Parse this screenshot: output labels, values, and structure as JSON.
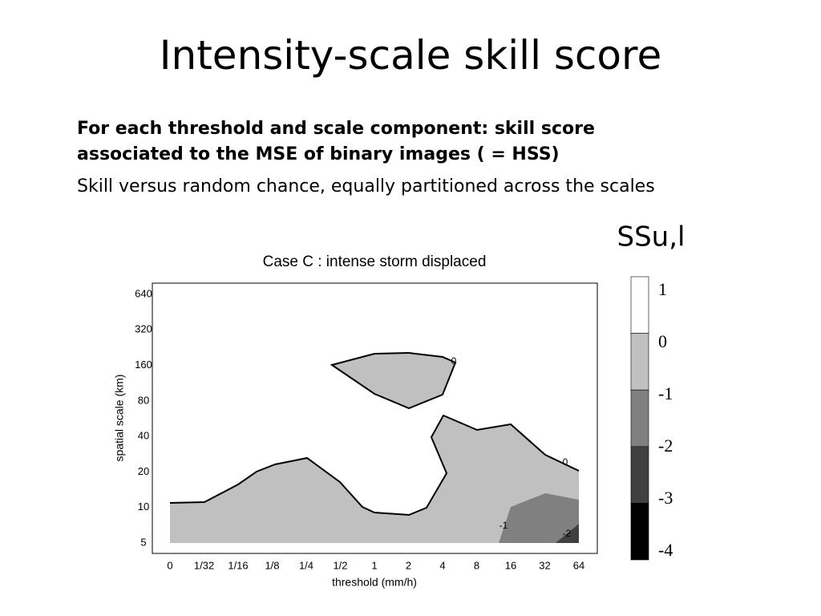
{
  "title": "Intensity-scale skill score",
  "paragraphs": [
    "For each threshold and scale component: skill score associated to the MSE of binary images ( = HSS)",
    "Skill versus random chance, equally partitioned across the scales"
  ],
  "chart": {
    "title": "Case C : intense storm displaced",
    "x_label": "threshold (mm/h)",
    "y_label": "spatial scale (km)",
    "x_ticks": [
      "0",
      "1/32",
      "1/16",
      "1/8",
      "1/4",
      "1/2",
      "1",
      "2",
      "4",
      "8",
      "16",
      "32",
      "64"
    ],
    "y_ticks": [
      "640",
      "320",
      "160",
      "80",
      "40",
      "20",
      "10",
      "5"
    ],
    "contour_labels": [
      "0",
      "0",
      "-1",
      "-2"
    ]
  },
  "colorbar": {
    "title": "SSu,l",
    "labels": [
      "1",
      "0",
      "-1",
      "-2",
      "-3",
      "-4"
    ],
    "colors": [
      "#ffffff",
      "#c0c0c0",
      "#808080",
      "#404040",
      "#000000"
    ]
  }
}
